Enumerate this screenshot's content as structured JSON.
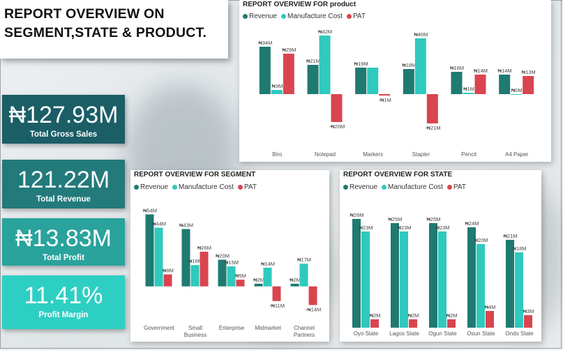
{
  "title": {
    "line1": "REPORT OVERVIEW ON",
    "line2": "SEGMENT,STATE & PRODUCT."
  },
  "colors": {
    "revenue": "#1f7a72",
    "cost": "#2fc9bd",
    "pat": "#d9454f"
  },
  "kpis": [
    {
      "value": "₦127.93M",
      "label": "Total Gross Sales",
      "color": "#1b5e66"
    },
    {
      "value": "121.22M",
      "label": "Total Revenue",
      "color": "#237a7b"
    },
    {
      "value": "₦13.83M",
      "label": "Total Profit",
      "color": "#29a39c"
    },
    {
      "value": "11.41%",
      "label": "Profit Margin",
      "color": "#2ecfc3"
    }
  ],
  "legend": {
    "revenue": "Revenue",
    "cost": "Manufacture Cost",
    "pat": "PAT"
  },
  "chart_data": [
    {
      "id": "product",
      "type": "bar",
      "title": "REPORT OVERVIEW FOR product",
      "categories": [
        "Biro",
        "Notepad",
        "Markers",
        "Stapler",
        "Pencil",
        "A4 Paper"
      ],
      "series": [
        {
          "name": "Revenue",
          "values": [
            34,
            21,
            19,
            18,
            16,
            14
          ],
          "labels": [
            "₦34M",
            "₦21M",
            "₦19M",
            "₦18M",
            "₦16M",
            "₦14M"
          ]
        },
        {
          "name": "Manufacture Cost",
          "values": [
            3,
            42,
            19,
            40,
            1,
            0
          ],
          "labels": [
            "₦3M",
            "₦42M",
            "",
            "₦40M",
            "₦1M",
            "₦0M"
          ]
        },
        {
          "name": "PAT",
          "values": [
            29,
            -20,
            -1,
            -21,
            14,
            13
          ],
          "labels": [
            "₦29M",
            "-₦20M",
            "-₦1M",
            "-₦21M",
            "₦14M",
            "₦13M"
          ]
        }
      ],
      "ylim": [
        -25,
        45
      ]
    },
    {
      "id": "segment",
      "type": "bar",
      "title": "REPORT OVERVIEW FOR SEGMENT",
      "categories": [
        "Government",
        "Small Business",
        "Enterprise",
        "Midmarket",
        "Channel Partners"
      ],
      "series": [
        {
          "name": "Revenue",
          "values": [
            54,
            43,
            20,
            2,
            2
          ],
          "labels": [
            "₦54M",
            "₦43M",
            "₦20M",
            "₦2M",
            "₦2M"
          ]
        },
        {
          "name": "Manufacture Cost",
          "values": [
            44,
            16,
            15,
            14,
            17
          ],
          "labels": [
            "₦44M",
            "₦16M",
            "₦15M",
            "₦14M",
            "₦17M"
          ]
        },
        {
          "name": "PAT",
          "values": [
            9,
            26,
            5,
            -11,
            -14
          ],
          "labels": [
            "₦9M",
            "₦26M",
            "₦5M",
            "-₦11M",
            "-₦14M"
          ]
        }
      ],
      "ylim": [
        -20,
        60
      ]
    },
    {
      "id": "state",
      "type": "bar",
      "title": "REPORT OVERVIEW FOR STATE",
      "categories": [
        "Oyo State",
        "Lagos State",
        "Ogun State",
        "Osun State",
        "Ondo State"
      ],
      "series": [
        {
          "name": "Revenue",
          "values": [
            26,
            25,
            25,
            24,
            21
          ],
          "labels": [
            "₦26M",
            "₦25M",
            "₦25M",
            "₦24M",
            "₦21M"
          ]
        },
        {
          "name": "Manufacture Cost",
          "values": [
            23,
            23,
            23,
            20,
            18
          ],
          "labels": [
            "₦23M",
            "₦23M",
            "₦23M",
            "₦20M",
            "₦18M"
          ]
        },
        {
          "name": "PAT",
          "values": [
            2,
            2,
            2,
            4,
            3
          ],
          "labels": [
            "₦2M",
            "₦2M",
            "₦2M",
            "₦4M",
            "₦3M"
          ]
        }
      ],
      "ylim": [
        0,
        28
      ]
    }
  ]
}
